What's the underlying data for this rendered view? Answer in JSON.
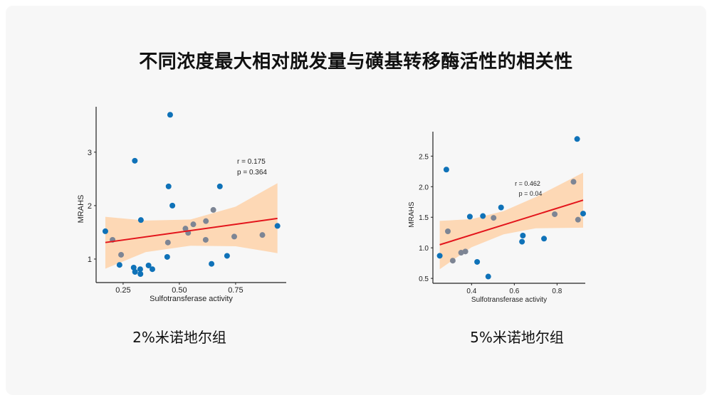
{
  "slide": {
    "title": "不同浓度最大相对脱发量与磺基转移酶活性的相关性",
    "captions": [
      "2%米诺地尔组",
      "5%米诺地尔组"
    ]
  },
  "colors": {
    "point_blue": "#0f72b8",
    "point_gray": "#7d8594",
    "fit_line": "#e3141b",
    "confidence_band": "#fdd8b5"
  },
  "chart_data": [
    {
      "type": "scatter",
      "title": "",
      "xlabel": "Sulfotransferase activity",
      "ylabel": "MRAHS",
      "xlim": [
        0.13,
        0.975
      ],
      "ylim": [
        0.56,
        3.85
      ],
      "xticks": [
        0.25,
        0.5,
        0.75
      ],
      "xtick_labels": [
        "0.25",
        "0.50",
        "0.75"
      ],
      "yticks": [
        1,
        2,
        3
      ],
      "ytick_labels": [
        "1",
        "2",
        "3"
      ],
      "grid": false,
      "annotations": [
        "r = 0.175",
        "p = 0.364"
      ],
      "series": [
        {
          "color": "blue",
          "points": [
            [
              0.171,
              1.52
            ],
            [
              0.302,
              2.84
            ],
            [
              0.459,
              3.7
            ],
            [
              0.452,
              2.36
            ],
            [
              0.469,
              2.0
            ],
            [
              0.68,
              2.36
            ],
            [
              0.329,
              1.73
            ],
            [
              0.446,
              1.04
            ],
            [
              0.234,
              0.89
            ],
            [
              0.297,
              0.84
            ],
            [
              0.303,
              0.76
            ],
            [
              0.326,
              0.81
            ],
            [
              0.327,
              0.72
            ],
            [
              0.363,
              0.88
            ],
            [
              0.38,
              0.81
            ],
            [
              0.643,
              0.91
            ],
            [
              0.712,
              1.06
            ],
            [
              0.936,
              1.62
            ]
          ]
        },
        {
          "color": "gray",
          "points": [
            [
              0.203,
              1.36
            ],
            [
              0.241,
              1.08
            ],
            [
              0.449,
              1.31
            ],
            [
              0.527,
              1.57
            ],
            [
              0.539,
              1.49
            ],
            [
              0.562,
              1.65
            ],
            [
              0.618,
              1.71
            ],
            [
              0.617,
              1.36
            ],
            [
              0.651,
              1.92
            ],
            [
              0.744,
              1.42
            ],
            [
              0.869,
              1.45
            ]
          ]
        }
      ],
      "fit_line": [
        [
          0.171,
          1.31
        ],
        [
          0.936,
          1.76
        ]
      ],
      "confidence_band": {
        "x": [
          0.171,
          0.35,
          0.55,
          0.75,
          0.936
        ],
        "upper": [
          1.79,
          1.72,
          1.74,
          1.98,
          2.42
        ],
        "lower": [
          0.82,
          1.13,
          1.25,
          1.24,
          1.11
        ]
      }
    },
    {
      "type": "scatter",
      "title": "",
      "xlabel": "Sulfotransferase activity",
      "ylabel": "MRAHS",
      "xlim": [
        0.219,
        0.932
      ],
      "ylim": [
        0.42,
        2.9
      ],
      "xticks": [
        0.4,
        0.6,
        0.8
      ],
      "xtick_labels": [
        "0.4",
        "0.6",
        "0.8"
      ],
      "yticks": [
        0.5,
        1.0,
        1.5,
        2.0,
        2.5
      ],
      "ytick_labels": [
        "0.5",
        "1.0",
        "1.5",
        "2.0",
        "2.5"
      ],
      "grid": false,
      "annotations": [
        "r = 0.462",
        "p = 0.04"
      ],
      "series": [
        {
          "color": "blue",
          "points": [
            [
              0.251,
              0.87
            ],
            [
              0.282,
              2.28
            ],
            [
              0.392,
              1.51
            ],
            [
              0.453,
              1.52
            ],
            [
              0.538,
              1.66
            ],
            [
              0.426,
              0.77
            ],
            [
              0.478,
              0.53
            ],
            [
              0.636,
              1.1
            ],
            [
              0.64,
              1.2
            ],
            [
              0.739,
              1.15
            ],
            [
              0.894,
              2.78
            ],
            [
              0.922,
              1.56
            ]
          ]
        },
        {
          "color": "gray",
          "points": [
            [
              0.289,
              1.27
            ],
            [
              0.312,
              0.79
            ],
            [
              0.351,
              0.92
            ],
            [
              0.371,
              0.94
            ],
            [
              0.503,
              1.49
            ],
            [
              0.789,
              1.55
            ],
            [
              0.877,
              2.08
            ],
            [
              0.898,
              1.46
            ]
          ]
        }
      ],
      "fit_line": [
        [
          0.251,
          1.05
        ],
        [
          0.922,
          1.78
        ]
      ],
      "confidence_band": {
        "x": [
          0.251,
          0.4,
          0.55,
          0.7,
          0.922
        ],
        "upper": [
          1.44,
          1.47,
          1.6,
          1.83,
          2.23
        ],
        "lower": [
          0.65,
          1.01,
          1.22,
          1.32,
          1.33
        ]
      }
    }
  ]
}
